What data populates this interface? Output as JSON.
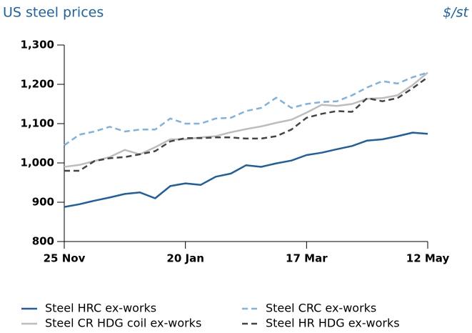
{
  "chart_data": {
    "type": "line",
    "title": "US steel prices",
    "unit": "$/st",
    "categories": [
      "25 Nov",
      null,
      null,
      null,
      null,
      null,
      null,
      null,
      "20 Jan",
      null,
      null,
      null,
      null,
      null,
      null,
      null,
      "17 Mar",
      null,
      null,
      null,
      null,
      null,
      null,
      null,
      "12 May"
    ],
    "series": [
      {
        "name": "Steel HRC ex-works",
        "color": "#1f5fa0",
        "dashed": false,
        "values": [
          888,
          895,
          904,
          912,
          921,
          925,
          910,
          941,
          948,
          944,
          965,
          973,
          994,
          990,
          999,
          1006,
          1020,
          1026,
          1035,
          1043,
          1057,
          1060,
          1068,
          1077,
          1074
        ]
      },
      {
        "name": "Steel CRC ex-works",
        "color": "#7fb2e0",
        "dashed": true,
        "values": [
          1045,
          1072,
          1080,
          1092,
          1080,
          1085,
          1085,
          1113,
          1100,
          1100,
          1113,
          1115,
          1132,
          1140,
          1166,
          1140,
          1150,
          1155,
          1157,
          1172,
          1192,
          1208,
          1202,
          1218,
          1230
        ]
      },
      {
        "name": "Steel CR HDG coil ex-works",
        "color": "#bdbdbd",
        "dashed": false,
        "values": [
          990,
          995,
          1005,
          1015,
          1033,
          1022,
          1040,
          1060,
          1060,
          1065,
          1068,
          1078,
          1086,
          1093,
          1102,
          1110,
          1128,
          1148,
          1145,
          1150,
          1163,
          1165,
          1172,
          1198,
          1230
        ]
      },
      {
        "name": "Steel HR HDG ex-works",
        "color": "#444444",
        "dashed": true,
        "values": [
          980,
          980,
          1005,
          1012,
          1015,
          1022,
          1030,
          1055,
          1063,
          1063,
          1065,
          1065,
          1062,
          1062,
          1068,
          1085,
          1115,
          1125,
          1132,
          1130,
          1165,
          1157,
          1165,
          1190,
          1218
        ]
      }
    ],
    "ylim": [
      800,
      1300
    ],
    "yticks": [
      800,
      {
        "value": 900,
        "label": "900"
      },
      {
        "value": 1000,
        "label": "1,000"
      },
      {
        "value": 1100,
        "label": "1,100"
      },
      {
        "value": 1200,
        "label": "1,200"
      },
      {
        "value": 1300,
        "label": "1,300"
      }
    ],
    "grid": false
  }
}
